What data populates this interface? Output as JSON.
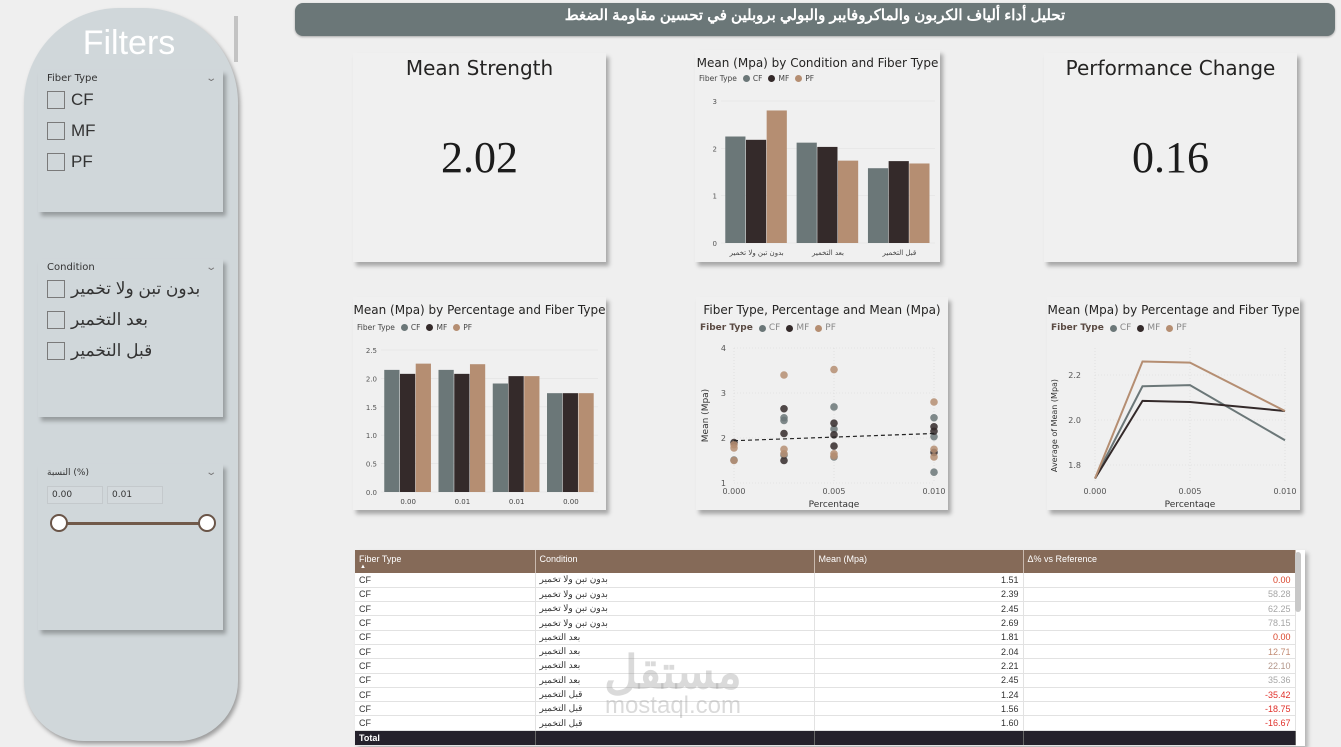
{
  "header": {
    "title": "تحليل أداء ألياف الكربون والماكروفايبر والبولي بروبلين في تحسين مقاومة الضغط"
  },
  "colors": {
    "CF": "#6b7778",
    "MF": "#342a2a",
    "PF": "#b58e72",
    "header_bg": "#6b7778",
    "table_header": "#856a58",
    "total_row": "#24212b",
    "negative": "#e0302a",
    "zero": "#d9442a"
  },
  "sidebar": {
    "title": "Filters",
    "fiber_slicer": {
      "label": "Fiber Type",
      "chevron": "chevron-down-icon",
      "options": [
        "CF",
        "MF",
        "PF"
      ]
    },
    "condition_slicer": {
      "label": "Condition",
      "chevron": "chevron-down-icon",
      "options": [
        "بدون تبن ولا تخمير",
        "بعد التخمير",
        "قبل التخمير"
      ]
    },
    "percentage_slicer": {
      "label": "النسبة (%)",
      "chevron": "chevron-down-icon",
      "min_value": "0.00",
      "max_value": "0.01"
    }
  },
  "kpis": [
    {
      "title": "Mean Strength",
      "value": "2.02"
    },
    {
      "title": "Performance Change",
      "value": "0.16"
    }
  ],
  "legend": {
    "title": "Fiber Type",
    "items": [
      "CF",
      "MF",
      "PF"
    ]
  },
  "chart_data": [
    {
      "type": "bar",
      "title": "Mean (Mpa) by Condition and Fiber Type",
      "categories": [
        "بدون تبن ولا تخمير",
        "بعد التخمير",
        "قبل التخمير"
      ],
      "series": [
        {
          "name": "CF",
          "values": [
            2.25,
            2.12,
            1.58
          ]
        },
        {
          "name": "MF",
          "values": [
            2.18,
            2.03,
            1.73
          ]
        },
        {
          "name": "PF",
          "values": [
            2.8,
            1.74,
            1.68
          ]
        }
      ],
      "yticks": [
        "0",
        "1",
        "2",
        "3"
      ],
      "ylim": [
        0,
        3
      ],
      "xlabel": "",
      "ylabel": "",
      "legend_position": "top-left"
    },
    {
      "type": "bar",
      "title": "Mean (Mpa) by Percentage and Fiber Type",
      "categories": [
        "0.00",
        "0.01",
        "0.01",
        "0.00"
      ],
      "series": [
        {
          "name": "CF",
          "values": [
            2.15,
            2.15,
            1.91,
            1.74
          ]
        },
        {
          "name": "MF",
          "values": [
            2.08,
            2.08,
            2.04,
            1.74
          ]
        },
        {
          "name": "PF",
          "values": [
            2.26,
            2.25,
            2.04,
            1.74
          ]
        }
      ],
      "yticks": [
        "0.0",
        "0.5",
        "1.0",
        "1.5",
        "2.0",
        "2.5"
      ],
      "ylim": [
        0,
        2.5
      ],
      "xlabel": "",
      "ylabel": "",
      "legend_position": "top-left"
    },
    {
      "type": "scatter",
      "title": "Fiber Type, Percentage and Mean (Mpa)",
      "xlabel": "Percentage",
      "ylabel": "Mean (Mpa)",
      "xticks": [
        "0.000",
        "0.005",
        "0.010"
      ],
      "xlim": [
        0,
        0.01
      ],
      "yticks": [
        "1",
        "2",
        "3",
        "4"
      ],
      "ylim": [
        1,
        4
      ],
      "series": [
        {
          "name": "CF",
          "points": [
            [
              0,
              1.51
            ],
            [
              0.0025,
              2.39
            ],
            [
              0.0025,
              2.45
            ],
            [
              0.0025,
              1.62
            ],
            [
              0.005,
              2.69
            ],
            [
              0.005,
              2.2
            ],
            [
              0.005,
              1.58
            ],
            [
              0.01,
              2.45
            ],
            [
              0.01,
              2.03
            ],
            [
              0.01,
              1.24
            ]
          ]
        },
        {
          "name": "MF",
          "points": [
            [
              0,
              1.9
            ],
            [
              0.0025,
              2.65
            ],
            [
              0.0025,
              2.1
            ],
            [
              0.0025,
              1.5
            ],
            [
              0.005,
              2.33
            ],
            [
              0.005,
              2.07
            ],
            [
              0.005,
              1.82
            ],
            [
              0.01,
              2.25
            ],
            [
              0.01,
              2.15
            ],
            [
              0.01,
              1.68
            ]
          ]
        },
        {
          "name": "PF",
          "points": [
            [
              0,
              1.85
            ],
            [
              0,
              1.78
            ],
            [
              0,
              1.5
            ],
            [
              0.0025,
              3.4
            ],
            [
              0.0025,
              1.75
            ],
            [
              0.0025,
              1.65
            ],
            [
              0.005,
              3.52
            ],
            [
              0.005,
              1.65
            ],
            [
              0.005,
              1.6
            ],
            [
              0.01,
              2.8
            ],
            [
              0.01,
              1.75
            ],
            [
              0.01,
              1.58
            ]
          ]
        }
      ],
      "trendline": [
        [
          0,
          1.94
        ],
        [
          0.01,
          2.1
        ]
      ],
      "grid": true,
      "legend_position": "top-left"
    },
    {
      "type": "line",
      "title": "Mean (Mpa) by Percentage and Fiber Type",
      "xlabel": "Percentage",
      "ylabel": "Average of Mean (Mpa)",
      "x": [
        0,
        0.0025,
        0.005,
        0.01
      ],
      "xticks": [
        "0.000",
        "0.005",
        "0.010"
      ],
      "xlim": [
        0,
        0.01
      ],
      "yticks": [
        "1.8",
        "2.0",
        "2.2"
      ],
      "ylim": [
        1.72,
        2.32
      ],
      "series": [
        {
          "name": "CF",
          "values": [
            1.74,
            2.15,
            2.155,
            1.91
          ]
        },
        {
          "name": "MF",
          "values": [
            1.74,
            2.085,
            2.08,
            2.04
          ]
        },
        {
          "name": "PF",
          "values": [
            1.74,
            2.26,
            2.255,
            2.04
          ]
        }
      ],
      "grid": true,
      "legend_position": "top-left"
    }
  ],
  "table": {
    "columns": [
      "Fiber Type",
      "Condition",
      "Mean (Mpa)",
      "Δ% vs Reference"
    ],
    "sort_indicator": "sort-ascending-icon",
    "rows": [
      {
        "fiber": "CF",
        "condition": "بدون تبن ولا تخمير",
        "mean": "1.51",
        "delta": "0.00",
        "color": "#d9442a"
      },
      {
        "fiber": "CF",
        "condition": "بدون تبن ولا تخمير",
        "mean": "2.39",
        "delta": "58.28",
        "color": "#a6a6a6"
      },
      {
        "fiber": "CF",
        "condition": "بدون تبن ولا تخمير",
        "mean": "2.45",
        "delta": "62.25",
        "color": "#a6a6a6"
      },
      {
        "fiber": "CF",
        "condition": "بدون تبن ولا تخمير",
        "mean": "2.69",
        "delta": "78.15",
        "color": "#a6a6a6"
      },
      {
        "fiber": "CF",
        "condition": "بعد التخمير",
        "mean": "1.81",
        "delta": "0.00",
        "color": "#d9442a"
      },
      {
        "fiber": "CF",
        "condition": "بعد التخمير",
        "mean": "2.04",
        "delta": "12.71",
        "color": "#c08a72"
      },
      {
        "fiber": "CF",
        "condition": "بعد التخمير",
        "mean": "2.21",
        "delta": "22.10",
        "color": "#b3968a"
      },
      {
        "fiber": "CF",
        "condition": "بعد التخمير",
        "mean": "2.45",
        "delta": "35.36",
        "color": "#a6a6a6"
      },
      {
        "fiber": "CF",
        "condition": "قبل التخمير",
        "mean": "1.24",
        "delta": "-35.42",
        "color": "#e0302a"
      },
      {
        "fiber": "CF",
        "condition": "قبل التخمير",
        "mean": "1.56",
        "delta": "-18.75",
        "color": "#e0302a"
      },
      {
        "fiber": "CF",
        "condition": "قبل التخمير",
        "mean": "1.60",
        "delta": "-16.67",
        "color": "#e0302a"
      }
    ],
    "total_label": "Total"
  },
  "watermark": {
    "arabic": "مستقل",
    "latin": "mostaql.com"
  }
}
